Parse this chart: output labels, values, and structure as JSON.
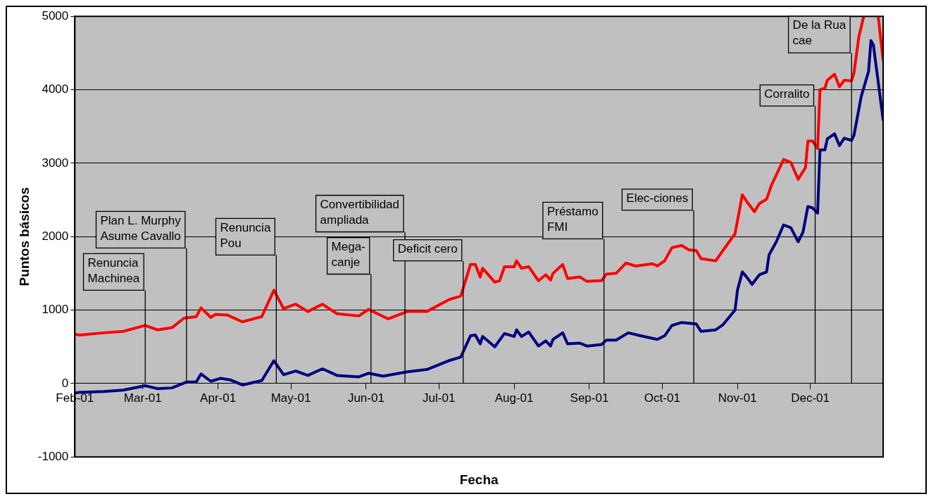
{
  "chart_data": {
    "type": "line",
    "xlabel": "Fecha",
    "ylabel": "Puntos básicos",
    "xlim": [
      "--02-01",
      "--12-31"
    ],
    "xticks": [
      {
        "value": "--02-01",
        "label": "Feb-01"
      },
      {
        "value": "--03-01",
        "label": "Mar-01"
      },
      {
        "value": "--04-01",
        "label": "Apr-01"
      },
      {
        "value": "--05-01",
        "label": "May-01"
      },
      {
        "value": "--06-01",
        "label": "Jun-01"
      },
      {
        "value": "--07-01",
        "label": "Jul-01"
      },
      {
        "value": "--08-01",
        "label": "Aug-01"
      },
      {
        "value": "--09-01",
        "label": "Sep-01"
      },
      {
        "value": "--10-01",
        "label": "Oct-01"
      },
      {
        "value": "--11-01",
        "label": "Nov-01"
      },
      {
        "value": "--12-01",
        "label": "Dec-01"
      }
    ],
    "ylim": [
      -1000,
      5000
    ],
    "yticks": [
      -1000,
      0,
      1000,
      2000,
      3000,
      4000,
      5000
    ],
    "grid": "y",
    "legend": false,
    "marker": "none",
    "line_style": "solid",
    "series": [
      {
        "color": "#ff0000",
        "x": [
          "--02-01",
          "--02-03",
          "--02-13",
          "--02-21",
          "--03-02",
          "--03-07",
          "--03-13",
          "--03-18",
          "--03-23",
          "--03-25",
          "--03-29",
          "--03-31",
          "--04-05",
          "--04-11",
          "--04-19",
          "--04-24",
          "--04-28",
          "--05-03",
          "--05-08",
          "--05-14",
          "--05-20",
          "--05-29",
          "--06-02",
          "--06-10",
          "--06-18",
          "--06-26",
          "--07-05",
          "--07-10",
          "--07-14",
          "--07-16",
          "--07-18",
          "--07-19",
          "--07-24",
          "--07-26",
          "--07-28",
          "--08-01",
          "--08-02",
          "--08-04",
          "--08-07",
          "--08-11",
          "--08-14",
          "--08-16",
          "--08-17",
          "--08-21",
          "--08-23",
          "--08-28",
          "--08-31",
          "--09-06",
          "--09-08",
          "--09-12",
          "--09-16",
          "--09-20",
          "--09-27",
          "--09-29",
          "--10-02",
          "--10-05",
          "--10-09",
          "--10-12",
          "--10-15",
          "--10-17",
          "--10-23",
          "--10-26",
          "--10-31",
          "--11-03",
          "--11-05",
          "--11-08",
          "--11-10",
          "--11-13",
          "--11-15",
          "--11-20",
          "--11-23",
          "--11-26",
          "--11-29",
          "--11-30",
          "--12-02",
          "--12-04",
          "--12-05",
          "--12-07",
          "--12-08",
          "--12-11",
          "--12-13",
          "--12-15",
          "--12-18",
          "--12-19",
          "--12-21",
          "--12-23",
          "--12-26",
          "--12-29",
          "--12-31"
        ],
        "values": [
          670,
          660,
          690,
          710,
          790,
          730,
          760,
          890,
          910,
          1030,
          900,
          940,
          930,
          840,
          910,
          1270,
          1020,
          1080,
          980,
          1080,
          950,
          920,
          1010,
          880,
          980,
          980,
          1140,
          1190,
          1620,
          1620,
          1450,
          1570,
          1380,
          1400,
          1590,
          1590,
          1670,
          1570,
          1590,
          1400,
          1480,
          1410,
          1500,
          1620,
          1430,
          1450,
          1390,
          1400,
          1490,
          1500,
          1640,
          1600,
          1630,
          1600,
          1670,
          1850,
          1880,
          1820,
          1810,
          1700,
          1670,
          1810,
          2040,
          2570,
          2470,
          2340,
          2450,
          2510,
          2700,
          3050,
          3010,
          2780,
          2940,
          3300,
          3300,
          3200,
          4000,
          4020,
          4130,
          4210,
          4040,
          4130,
          4120,
          4230,
          4720,
          5000,
          null,
          5000,
          4400
        ]
      },
      {
        "color": "#000080",
        "x": [
          "--02-01",
          "--02-03",
          "--02-13",
          "--02-21",
          "--03-02",
          "--03-07",
          "--03-13",
          "--03-19",
          "--03-23",
          "--03-25",
          "--03-29",
          "--04-02",
          "--04-06",
          "--04-11",
          "--04-19",
          "--04-24",
          "--04-28",
          "--05-03",
          "--05-08",
          "--05-14",
          "--05-20",
          "--05-29",
          "--06-02",
          "--06-08",
          "--06-18",
          "--06-26",
          "--07-05",
          "--07-10",
          "--07-14",
          "--07-16",
          "--07-18",
          "--07-19",
          "--07-24",
          "--07-28",
          "--08-01",
          "--08-02",
          "--08-04",
          "--08-07",
          "--08-11",
          "--08-14",
          "--08-16",
          "--08-17",
          "--08-21",
          "--08-23",
          "--08-28",
          "--08-31",
          "--09-06",
          "--09-08",
          "--09-12",
          "--09-17",
          "--09-22",
          "--09-29",
          "--10-02",
          "--10-05",
          "--10-09",
          "--10-15",
          "--10-17",
          "--10-23",
          "--10-26",
          "--10-31",
          "--11-01",
          "--11-03",
          "--11-05",
          "--11-07",
          "--11-10",
          "--11-13",
          "--11-14",
          "--11-17",
          "--11-20",
          "--11-23",
          "--11-26",
          "--11-28",
          "--11-30",
          "--12-02",
          "--12-04",
          "--12-05",
          "--12-07",
          "--12-08",
          "--12-11",
          "--12-13",
          "--12-15",
          "--12-18",
          "--12-19",
          "--12-22",
          "--12-25",
          "--12-26",
          "--12-27",
          "--12-31"
        ],
        "values": [
          -130,
          -120,
          -110,
          -90,
          -30,
          -70,
          -60,
          20,
          20,
          130,
          30,
          70,
          50,
          -20,
          40,
          310,
          120,
          170,
          110,
          200,
          110,
          90,
          140,
          100,
          160,
          190,
          310,
          360,
          650,
          660,
          540,
          640,
          500,
          680,
          640,
          730,
          640,
          700,
          510,
          580,
          510,
          600,
          690,
          540,
          550,
          510,
          530,
          590,
          590,
          690,
          650,
          600,
          650,
          790,
          830,
          810,
          710,
          730,
          800,
          1000,
          1270,
          1520,
          1440,
          1350,
          1480,
          1520,
          1750,
          1930,
          2160,
          2120,
          1930,
          2060,
          2410,
          2390,
          2320,
          3180,
          3180,
          3330,
          3400,
          3240,
          3340,
          3310,
          3380,
          3910,
          4250,
          4670,
          4610,
          3590
        ]
      }
    ],
    "ref_lines": [
      {
        "axis": "x",
        "value": "--03-02",
        "label": "Renuncia\nMachinea"
      },
      {
        "axis": "x",
        "value": "--03-19",
        "label": "Plan L. Murphy\nAsume Cavallo"
      },
      {
        "axis": "x",
        "value": "--04-25",
        "label": "Renuncia\nPou"
      },
      {
        "axis": "x",
        "value": "--06-03",
        "label": "Mega-\ncanje"
      },
      {
        "axis": "x",
        "value": "--06-17",
        "label": "Convertibilidad\nampliada"
      },
      {
        "axis": "x",
        "value": "--07-11",
        "label": "Deficit cero"
      },
      {
        "axis": "x",
        "value": "--09-07",
        "label": "Préstamo\nFMI"
      },
      {
        "axis": "x",
        "value": "--10-14",
        "label": "Elec-ciones"
      },
      {
        "axis": "x",
        "value": "--12-03",
        "label": "Corralito"
      },
      {
        "axis": "x",
        "value": "--12-18",
        "label": "De la Rua\ncae"
      }
    ]
  }
}
